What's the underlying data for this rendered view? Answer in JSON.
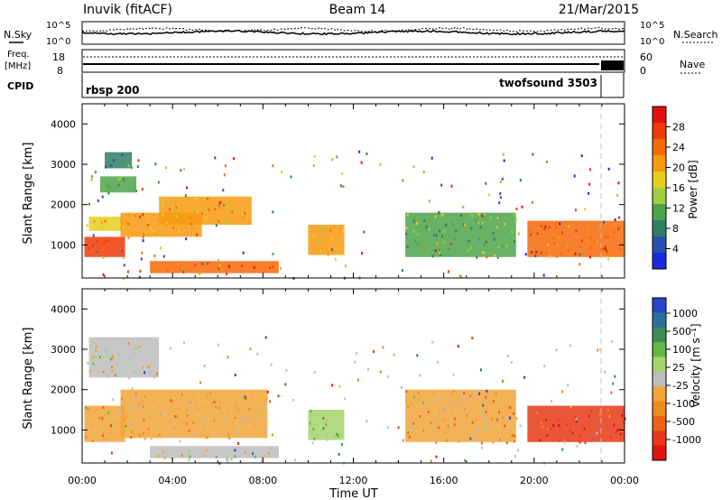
{
  "header": {
    "station": "Inuvik (fitACF)",
    "beam": "Beam 14",
    "date": "21/Mar/2015"
  },
  "noise_panel": {
    "left_label": "N.Sky",
    "right_label": "N.Search",
    "ticks": [
      "10^5",
      "10^0"
    ]
  },
  "freq_panel": {
    "left_label_1": "Freq.",
    "left_label_2": "[MHz]",
    "left_ticks": [
      "18",
      "8"
    ],
    "right_label": "Nave",
    "right_ticks": [
      "60",
      "0"
    ]
  },
  "cpid_panel": {
    "label": "CPID",
    "mode_1": "rbsp 200",
    "mode_2": "twofsound 3503"
  },
  "x_axis": {
    "title": "Time UT",
    "tick_labels": [
      "00:00",
      "04:00",
      "08:00",
      "12:00",
      "16:00",
      "20:00",
      "00:00"
    ]
  },
  "range_axis": {
    "title": "Slant Range [km]",
    "tick_labels": [
      "1000",
      "2000",
      "3000",
      "4000"
    ]
  },
  "power_colorbar": {
    "title": "Power [dB]",
    "tick_labels": [
      "4",
      "8",
      "12",
      "16",
      "20",
      "24",
      "28"
    ]
  },
  "velocity_colorbar": {
    "title": "Velocity [m s⁻¹]",
    "tick_labels": [
      "1000",
      "500",
      "100",
      "25",
      "-25",
      "-100",
      "-500",
      "-1000"
    ]
  },
  "colors": {
    "power_scale": [
      "#1a2ae0",
      "#2a4fb0",
      "#2e7f62",
      "#4ea34a",
      "#9fcf3d",
      "#e9cc21",
      "#f79a10",
      "#f56a08",
      "#ee3a06",
      "#e31010"
    ],
    "velocity_scale": [
      "#2a45c8",
      "#2f6fa0",
      "#3f8c57",
      "#62b546",
      "#a3d56a",
      "#bdbdbd",
      "#f2a43a",
      "#ef8a1c",
      "#ec6412",
      "#e63818",
      "#e11212"
    ],
    "scatter_gray": "#bfbfbf"
  },
  "chart_data": [
    {
      "type": "heatmap",
      "name": "power",
      "x_range_hours": [
        0,
        24
      ],
      "y_range_km": [
        180,
        4500
      ],
      "value_range_db": [
        0,
        32
      ],
      "regions": [
        {
          "t": [
            0.1,
            1.9
          ],
          "r": [
            700,
            1200
          ],
          "value": 26
        },
        {
          "t": [
            0.3,
            1.8
          ],
          "r": [
            1350,
            1700
          ],
          "value": 18
        },
        {
          "t": [
            1.7,
            5.3
          ],
          "r": [
            1200,
            1800
          ],
          "value": 22
        },
        {
          "t": [
            3.4,
            7.5
          ],
          "r": [
            1500,
            2200
          ],
          "value": 20
        },
        {
          "t": [
            3.0,
            8.7
          ],
          "r": [
            300,
            600
          ],
          "value": 24
        },
        {
          "t": [
            0.8,
            2.4
          ],
          "r": [
            2300,
            2700
          ],
          "value": 12
        },
        {
          "t": [
            1.0,
            2.2
          ],
          "r": [
            2900,
            3300
          ],
          "value": 8
        },
        {
          "t": [
            10.0,
            11.6
          ],
          "r": [
            750,
            1500
          ],
          "value": 20
        },
        {
          "t": [
            14.3,
            19.2
          ],
          "r": [
            700,
            1800
          ],
          "value": 12
        },
        {
          "t": [
            19.7,
            24.0
          ],
          "r": [
            700,
            1600
          ],
          "value": 24
        }
      ],
      "title": "",
      "xlabel": "Time UT",
      "ylabel": "Slant Range [km]"
    },
    {
      "type": "heatmap",
      "name": "velocity",
      "x_range_hours": [
        0,
        24
      ],
      "y_range_km": [
        180,
        4500
      ],
      "value_range_mps": [
        -1200,
        1200
      ],
      "regions": [
        {
          "t": [
            0.1,
            1.9
          ],
          "r": [
            700,
            1600
          ],
          "value": -300
        },
        {
          "t": [
            1.7,
            8.2
          ],
          "r": [
            800,
            2000
          ],
          "value": -200
        },
        {
          "t": [
            3.0,
            8.7
          ],
          "r": [
            300,
            600
          ],
          "value": 0
        },
        {
          "t": [
            0.3,
            3.4
          ],
          "r": [
            2300,
            3300
          ],
          "value": 0
        },
        {
          "t": [
            10.0,
            11.6
          ],
          "r": [
            750,
            1500
          ],
          "value": 300
        },
        {
          "t": [
            14.3,
            19.2
          ],
          "r": [
            700,
            2000
          ],
          "value": -300
        },
        {
          "t": [
            19.7,
            24.0
          ],
          "r": [
            700,
            1600
          ],
          "value": -800
        }
      ],
      "title": "",
      "xlabel": "Time UT",
      "ylabel": "Slant Range [km]"
    }
  ]
}
